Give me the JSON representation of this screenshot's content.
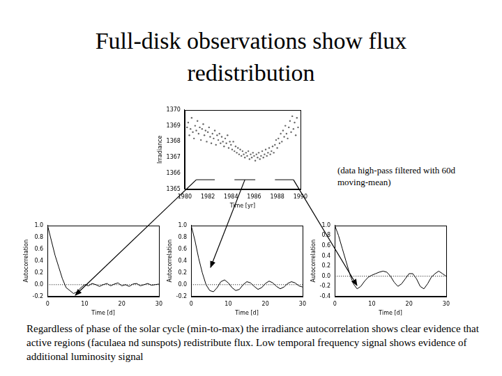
{
  "slide": {
    "title": [
      "Full-disk observations show flux",
      "redistribution"
    ],
    "note": [
      "(data high-pass filtered with 60d",
      "moving-mean)"
    ],
    "caption": "Regardless of phase of the solar cycle (min-to-max) the irradiance autocorrelation shows clear evidence that active regions (faculaea nd sunspots) redistribute flux. Low temporal frequency signal shows evidence of additional luminosity signal"
  },
  "chart_data": [
    {
      "type": "scatter",
      "xlabel": "Time [yr]",
      "ylabel": "Irradiance",
      "xlim": [
        1980,
        1990
      ],
      "xticks": [
        1980,
        1982,
        1984,
        1986,
        1988,
        1990
      ],
      "ylim": [
        1365,
        1370
      ],
      "yticks": [
        1365,
        1366,
        1367,
        1368,
        1369,
        1370
      ],
      "grid": false,
      "series": [
        {
          "type": "scatter",
          "color": "#666666",
          "marker": "dot",
          "x": [
            1980.2,
            1980.3,
            1980.4,
            1980.5,
            1980.6,
            1980.7,
            1980.8,
            1980.9,
            1981.0,
            1981.1,
            1981.2,
            1981.3,
            1981.4,
            1981.5,
            1981.6,
            1981.7,
            1981.8,
            1981.9,
            1982.0,
            1982.1,
            1982.2,
            1982.3,
            1982.4,
            1982.5,
            1982.6,
            1982.7,
            1982.8,
            1982.9,
            1983.0,
            1983.1,
            1983.2,
            1983.3,
            1983.4,
            1983.5,
            1983.6,
            1983.7,
            1983.8,
            1983.9,
            1984.0,
            1984.1,
            1984.2,
            1984.3,
            1984.4,
            1984.5,
            1984.6,
            1984.7,
            1984.8,
            1984.9,
            1985.0,
            1985.1,
            1985.2,
            1985.3,
            1985.4,
            1985.5,
            1985.6,
            1985.7,
            1985.8,
            1985.9,
            1986.0,
            1986.1,
            1986.2,
            1986.3,
            1986.4,
            1986.5,
            1986.6,
            1986.7,
            1986.8,
            1986.9,
            1987.0,
            1987.1,
            1987.2,
            1987.3,
            1987.4,
            1987.5,
            1987.6,
            1987.7,
            1987.8,
            1987.9,
            1988.0,
            1988.1,
            1988.2,
            1988.3,
            1988.4,
            1988.5,
            1988.6,
            1988.7,
            1988.8,
            1988.9,
            1989.0,
            1989.1,
            1989.2,
            1989.3,
            1989.4,
            1989.5,
            1989.6,
            1989.7,
            1989.8
          ],
          "values": [
            1368.9,
            1369.2,
            1368.4,
            1368.8,
            1369.5,
            1368.6,
            1368.2,
            1369.0,
            1368.7,
            1369.3,
            1368.5,
            1368.9,
            1368.1,
            1368.8,
            1369.1,
            1368.4,
            1368.7,
            1368.0,
            1368.6,
            1368.9,
            1368.3,
            1367.9,
            1368.5,
            1368.2,
            1368.7,
            1367.8,
            1368.4,
            1368.1,
            1368.5,
            1367.9,
            1368.3,
            1368.0,
            1367.7,
            1368.2,
            1367.9,
            1368.4,
            1367.6,
            1368.0,
            1367.8,
            1367.5,
            1368.0,
            1367.4,
            1367.7,
            1367.3,
            1367.6,
            1367.2,
            1367.5,
            1367.1,
            1367.4,
            1367.2,
            1367.0,
            1367.3,
            1367.1,
            1367.4,
            1366.9,
            1367.2,
            1367.0,
            1367.3,
            1367.1,
            1366.8,
            1367.2,
            1367.0,
            1367.3,
            1366.9,
            1367.1,
            1367.4,
            1367.0,
            1367.2,
            1367.5,
            1367.1,
            1367.3,
            1367.6,
            1367.2,
            1367.4,
            1367.7,
            1367.3,
            1367.8,
            1368.1,
            1367.6,
            1368.2,
            1367.9,
            1368.5,
            1368.0,
            1368.7,
            1368.3,
            1369.0,
            1368.5,
            1368.2,
            1368.9,
            1369.3,
            1368.6,
            1369.6,
            1368.8,
            1369.2,
            1368.4,
            1369.5,
            1368.9
          ]
        },
        {
          "type": "line",
          "color": "#000000",
          "marker": "none",
          "line_style": "solid",
          "x": [
            1981.0,
            1982.6
          ],
          "values": [
            1365.6,
            1365.6
          ]
        },
        {
          "type": "line",
          "color": "#000000",
          "marker": "none",
          "line_style": "solid",
          "x": [
            1984.3,
            1986.1
          ],
          "values": [
            1365.6,
            1365.6
          ]
        },
        {
          "type": "line",
          "color": "#000000",
          "marker": "none",
          "line_style": "solid",
          "x": [
            1987.8,
            1989.4
          ],
          "values": [
            1365.6,
            1365.6
          ]
        }
      ]
    },
    {
      "type": "line",
      "xlabel": "Time [d]",
      "ylabel": "Autocorrelation",
      "xlim": [
        0,
        30
      ],
      "xticks": [
        0,
        10,
        20,
        30
      ],
      "ylim": [
        -0.2,
        1.0
      ],
      "yticks": [
        -0.2,
        {
          "value": 0,
          "label": "0.0"
        },
        0.2,
        0.4,
        0.6,
        0.8,
        {
          "value": 1,
          "label": "1.0"
        }
      ],
      "grid": false,
      "series": [
        {
          "type": "line",
          "color": "#000000",
          "marker": "none",
          "line_style": "solid",
          "x": [
            0,
            1,
            2,
            3,
            4,
            5,
            6,
            7,
            8,
            9,
            10,
            11,
            12,
            13,
            14,
            15,
            16,
            17,
            18,
            19,
            20,
            21,
            22,
            23,
            24,
            25,
            26,
            27,
            28,
            29,
            30
          ],
          "values": [
            1.0,
            0.75,
            0.5,
            0.3,
            0.1,
            -0.05,
            -0.1,
            -0.15,
            -0.12,
            -0.05,
            0.0,
            -0.02,
            0.02,
            0.0,
            -0.03,
            0.0,
            0.02,
            -0.02,
            0.01,
            0.03,
            -0.02,
            0.0,
            -0.03,
            0.01,
            0.02,
            -0.02,
            0.0,
            0.02,
            -0.01,
            0.0,
            0.01
          ]
        },
        {
          "type": "line",
          "color": "#000000",
          "marker": "none",
          "line_style": "dotted",
          "x": [
            0,
            30
          ],
          "values": [
            0,
            0
          ]
        }
      ]
    },
    {
      "type": "line",
      "xlabel": "Time [d]",
      "ylabel": "Autocorrelation",
      "xlim": [
        0,
        30
      ],
      "xticks": [
        0,
        10,
        20,
        30
      ],
      "ylim": [
        -0.2,
        1.0
      ],
      "yticks": [
        -0.2,
        {
          "value": 0,
          "label": "0.0"
        },
        0.2,
        0.4,
        0.6,
        0.8,
        {
          "value": 1,
          "label": "1.0"
        }
      ],
      "grid": false,
      "series": [
        {
          "type": "line",
          "color": "#000000",
          "marker": "none",
          "line_style": "solid",
          "x": [
            0,
            1,
            2,
            3,
            4,
            5,
            6,
            7,
            8,
            9,
            10,
            11,
            12,
            13,
            14,
            15,
            16,
            17,
            18,
            19,
            20,
            21,
            22,
            23,
            24,
            25,
            26,
            27,
            28,
            29,
            30
          ],
          "values": [
            1.0,
            0.75,
            0.45,
            0.2,
            0.0,
            -0.1,
            -0.12,
            -0.05,
            0.05,
            0.08,
            0.03,
            -0.05,
            -0.1,
            -0.08,
            0.0,
            0.05,
            0.03,
            -0.03,
            -0.08,
            -0.05,
            0.02,
            0.06,
            0.03,
            -0.03,
            -0.07,
            -0.04,
            0.02,
            0.05,
            0.03,
            -0.02,
            -0.04
          ]
        },
        {
          "type": "line",
          "color": "#000000",
          "marker": "none",
          "line_style": "dotted",
          "x": [
            0,
            30
          ],
          "values": [
            0,
            0
          ]
        }
      ]
    },
    {
      "type": "line",
      "xlabel": "Time [d]",
      "ylabel": "Autocorrelation",
      "xlim": [
        0,
        30
      ],
      "xticks": [
        0,
        10,
        20,
        30
      ],
      "ylim": [
        -0.4,
        1.0
      ],
      "yticks": [
        -0.4,
        -0.2,
        {
          "value": 0,
          "label": "0.0"
        },
        0.2,
        0.4,
        0.6,
        0.8,
        {
          "value": 1,
          "label": "1.0"
        }
      ],
      "grid": false,
      "series": [
        {
          "type": "line",
          "color": "#000000",
          "marker": "none",
          "line_style": "solid",
          "x": [
            0,
            1,
            2,
            3,
            4,
            5,
            6,
            7,
            8,
            9,
            10,
            11,
            12,
            13,
            14,
            15,
            16,
            17,
            18,
            19,
            20,
            21,
            22,
            23,
            24,
            25,
            26,
            27,
            28,
            29,
            30
          ],
          "values": [
            1.0,
            0.8,
            0.55,
            0.3,
            0.05,
            -0.15,
            -0.25,
            -0.2,
            -0.1,
            -0.02,
            0.02,
            0.05,
            0.08,
            0.1,
            0.08,
            0.0,
            -0.12,
            -0.2,
            -0.15,
            -0.05,
            0.05,
            0.05,
            -0.05,
            -0.2,
            -0.25,
            -0.15,
            -0.02,
            0.05,
            0.1,
            0.05,
            0.0
          ]
        },
        {
          "type": "line",
          "color": "#000000",
          "marker": "none",
          "line_style": "dotted",
          "x": [
            0,
            30
          ],
          "values": [
            0,
            0
          ]
        }
      ]
    }
  ]
}
